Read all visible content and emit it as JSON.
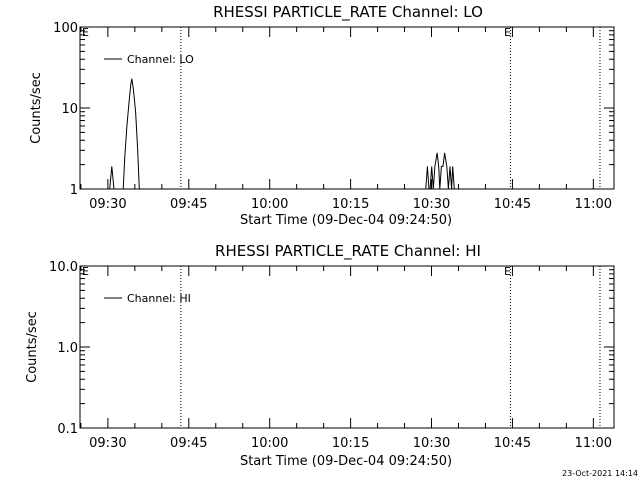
{
  "chart_data": [
    {
      "type": "line",
      "title": "RHESSI PARTICLE_RATE Channel: LO",
      "xlabel": "Start Time (09-Dec-04 09:24:50)",
      "ylabel": "Counts/sec",
      "yscale": "log",
      "ylim": [
        1,
        100
      ],
      "y_ticks": [
        "1",
        "10",
        "100"
      ],
      "x_ticks": [
        "09:30",
        "09:45",
        "10:00",
        "10:15",
        "10:30",
        "10:45",
        "11:00"
      ],
      "legend": {
        "label": "Channel: LO",
        "placement": "top-left"
      },
      "flags": [
        "E",
        "E"
      ],
      "series": [
        {
          "name": "Channel: LO",
          "segments": [
            [
              [
                5.5,
                1
              ],
              [
                5.9,
                1.9
              ],
              [
                6.3,
                1
              ]
            ],
            [
              [
                8.0,
                1
              ],
              [
                8.3,
                2.5
              ],
              [
                8.7,
                6
              ],
              [
                9.1,
                12
              ],
              [
                9.4,
                19
              ],
              [
                9.6,
                23
              ],
              [
                9.9,
                17
              ],
              [
                10.3,
                9
              ],
              [
                10.7,
                3
              ],
              [
                11.0,
                1
              ]
            ],
            [
              [
                64.1,
                1
              ],
              [
                64.4,
                1.9
              ],
              [
                64.7,
                1
              ],
              [
                64.9,
                1
              ],
              [
                65.2,
                1.9
              ],
              [
                65.5,
                1
              ],
              [
                65.8,
                1.9
              ],
              [
                66.2,
                2.8
              ],
              [
                66.5,
                1.9
              ],
              [
                66.7,
                1
              ],
              [
                67.0,
                1.9
              ],
              [
                67.3,
                1.9
              ],
              [
                67.6,
                2.8
              ],
              [
                68.0,
                1.9
              ],
              [
                68.3,
                1
              ],
              [
                68.6,
                1.9
              ],
              [
                68.9,
                1
              ],
              [
                69.1,
                1.9
              ],
              [
                69.4,
                1
              ]
            ]
          ]
        }
      ],
      "vlines": [
        18.7,
        79.8,
        96.4
      ]
    },
    {
      "type": "line",
      "title": "RHESSI PARTICLE_RATE Channel: HI",
      "xlabel": "Start Time (09-Dec-04 09:24:50)",
      "ylabel": "Counts/sec",
      "yscale": "log",
      "ylim": [
        0.1,
        10
      ],
      "y_ticks": [
        "0.1",
        "1.0",
        "10.0"
      ],
      "x_ticks": [
        "09:30",
        "09:45",
        "10:00",
        "10:15",
        "10:30",
        "10:45",
        "11:00"
      ],
      "legend": {
        "label": "Channel: HI",
        "placement": "top-left"
      },
      "flags": [
        "E",
        "E"
      ],
      "series": [],
      "vlines": [
        18.7,
        79.8,
        96.4
      ]
    }
  ],
  "timestamp": "23-Oct-2021 14:14"
}
